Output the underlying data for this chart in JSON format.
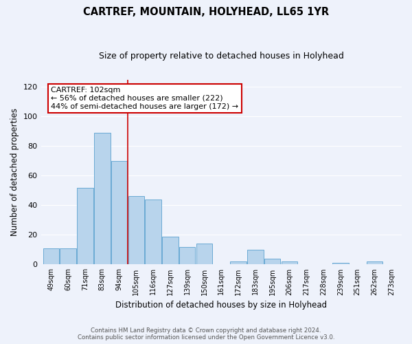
{
  "title": "CARTREF, MOUNTAIN, HOLYHEAD, LL65 1YR",
  "subtitle": "Size of property relative to detached houses in Holyhead",
  "xlabel": "Distribution of detached houses by size in Holyhead",
  "ylabel": "Number of detached properties",
  "bar_color": "#b8d4ec",
  "bar_edge_color": "#6aaad4",
  "background_color": "#eef2fb",
  "grid_color": "#ffffff",
  "bins": [
    "49sqm",
    "60sqm",
    "71sqm",
    "83sqm",
    "94sqm",
    "105sqm",
    "116sqm",
    "127sqm",
    "139sqm",
    "150sqm",
    "161sqm",
    "172sqm",
    "183sqm",
    "195sqm",
    "206sqm",
    "217sqm",
    "228sqm",
    "239sqm",
    "251sqm",
    "262sqm",
    "273sqm"
  ],
  "values": [
    11,
    11,
    52,
    89,
    70,
    46,
    44,
    19,
    12,
    14,
    0,
    2,
    10,
    4,
    2,
    0,
    0,
    1,
    0,
    2,
    0
  ],
  "marker_color": "#cc0000",
  "ylim": [
    0,
    125
  ],
  "yticks": [
    0,
    20,
    40,
    60,
    80,
    100,
    120
  ],
  "annotation_title": "CARTREF: 102sqm",
  "annotation_line1": "← 56% of detached houses are smaller (222)",
  "annotation_line2": "44% of semi-detached houses are larger (172) →",
  "footer1": "Contains HM Land Registry data © Crown copyright and database right 2024.",
  "footer2": "Contains public sector information licensed under the Open Government Licence v3.0."
}
